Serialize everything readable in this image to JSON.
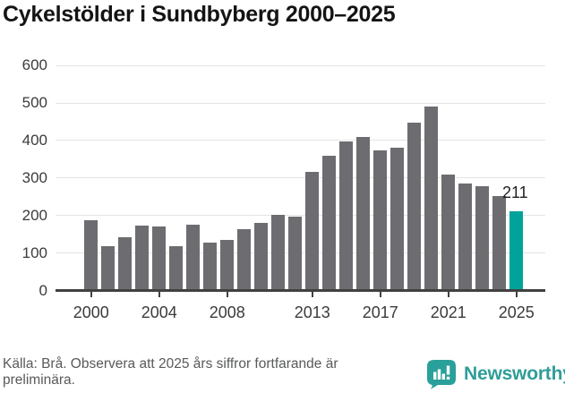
{
  "title": "Cykelstölder i Sundbyberg 2000–2025",
  "footer": {
    "source_note": "Källa: Brå. Observera att 2025 års siffror fortfarande är preliminära."
  },
  "branding": {
    "name": "Newsworthy",
    "color": "#2f9d98",
    "icon": "speech-bubble-bar-chart-exclamation"
  },
  "colors": {
    "bar": "#6d6d71",
    "highlight": "#00a39c",
    "grid": "#e4e4e4",
    "axis": "#414141",
    "axis_text": "#3b3b3b",
    "title_text": "#141414",
    "annotation_text": "#1f1f1f"
  },
  "chart_data": {
    "type": "bar",
    "title": "Cykelstölder i Sundbyberg 2000–2025",
    "xlabel": "",
    "ylabel": "",
    "categories": [
      2000,
      2001,
      2002,
      2003,
      2004,
      2005,
      2006,
      2007,
      2008,
      2009,
      2010,
      2011,
      2012,
      2013,
      2014,
      2015,
      2016,
      2017,
      2018,
      2019,
      2020,
      2021,
      2022,
      2023,
      2024,
      2025
    ],
    "values": [
      187,
      116,
      142,
      172,
      170,
      116,
      174,
      126,
      133,
      163,
      179,
      200,
      195,
      316,
      357,
      396,
      408,
      373,
      380,
      446,
      490,
      308,
      284,
      277,
      250,
      211
    ],
    "highlight_year": 2025,
    "highlight_label": "211",
    "ylim": [
      0,
      600
    ],
    "yticks": [
      0,
      100,
      200,
      300,
      400,
      500,
      600
    ],
    "xticks": [
      2000,
      2004,
      2008,
      2013,
      2017,
      2021,
      2025
    ],
    "grid": true,
    "legend": "none"
  }
}
